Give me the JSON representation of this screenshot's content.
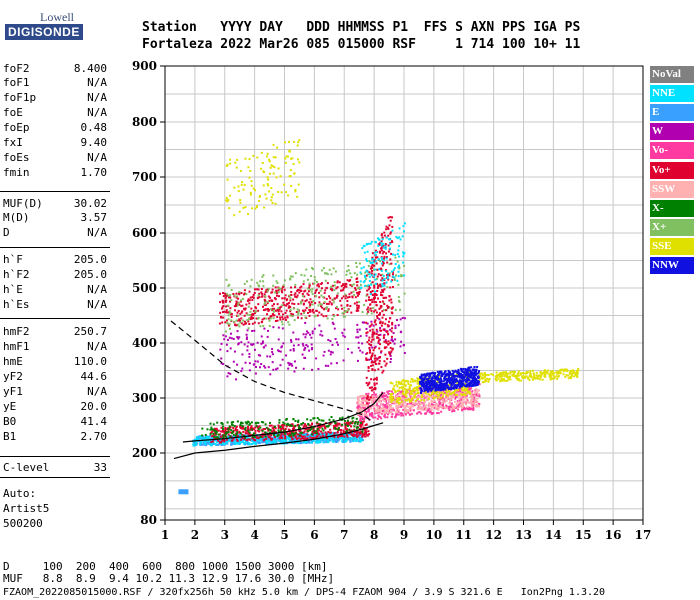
{
  "logo": {
    "top": "Lowell",
    "bottom": "DIGISONDE"
  },
  "header": {
    "line1": "Station   YYYY DAY   DDD HHMMSS P1  FFS S AXN PPS IGA PS",
    "line2": "Fortaleza 2022 Mar26 085 015000 RSF     1 714 100 10+ 11"
  },
  "params": [
    {
      "name": "foF2",
      "value": "8.400"
    },
    {
      "name": "foF1",
      "value": "N/A"
    },
    {
      "name": "foF1p",
      "value": "N/A"
    },
    {
      "name": "foE",
      "value": "N/A"
    },
    {
      "name": "foEp",
      "value": "0.48"
    },
    {
      "name": "fxI",
      "value": "9.40"
    },
    {
      "name": "foEs",
      "value": "N/A"
    },
    {
      "name": "fmin",
      "value": "1.70"
    },
    {
      "name": "MUF(D)",
      "value": "30.02"
    },
    {
      "name": "M(D)",
      "value": "3.57"
    },
    {
      "name": "D",
      "value": "N/A"
    },
    {
      "name": "h`F",
      "value": "205.0"
    },
    {
      "name": "h`F2",
      "value": "205.0"
    },
    {
      "name": "h`E",
      "value": "N/A"
    },
    {
      "name": "h`Es",
      "value": "N/A"
    },
    {
      "name": "hmF2",
      "value": "250.7"
    },
    {
      "name": "hmF1",
      "value": "N/A"
    },
    {
      "name": "hmE",
      "value": "110.0"
    },
    {
      "name": "yF2",
      "value": "44.6"
    },
    {
      "name": "yF1",
      "value": "N/A"
    },
    {
      "name": "yE",
      "value": "20.0"
    },
    {
      "name": "B0",
      "value": "41.4"
    },
    {
      "name": "B1",
      "value": "2.70"
    },
    {
      "name": "C-level",
      "value": "33"
    }
  ],
  "auto": {
    "line1": "Auto:",
    "line2": "Artist5",
    "line3": "500200"
  },
  "legend": [
    {
      "label": "NoVal",
      "color": "#808080"
    },
    {
      "label": "NNE",
      "color": "#00e0ff"
    },
    {
      "label": "E",
      "color": "#3aa0ff"
    },
    {
      "label": "W",
      "color": "#b000b0"
    },
    {
      "label": "Vo-",
      "color": "#ff3aa0"
    },
    {
      "label": "Vo+",
      "color": "#e00030"
    },
    {
      "label": "SSW",
      "color": "#ffb0b0"
    },
    {
      "label": "X-",
      "color": "#008000"
    },
    {
      "label": "X+",
      "color": "#80c060"
    },
    {
      "label": "SSE",
      "color": "#e0e000"
    },
    {
      "label": "NNW",
      "color": "#1010e0"
    }
  ],
  "footer": {
    "line1": "D     100  200  400  600  800 1000 1500 3000 [km]",
    "line2": "MUF   8.8  8.9  9.4 10.2 11.3 12.9 17.6 30.0 [MHz]",
    "line3": "FZAOM_2022085015000.RSF / 320fx256h 50 kHz 5.0 km / DPS-4 FZAOM 904 / 3.9 S 321.6 E   Ion2Png 1.3.20"
  },
  "chart_data": {
    "type": "scatter",
    "xlim": [
      1,
      17
    ],
    "ylim": [
      80,
      900
    ],
    "x_ticks": [
      "1",
      "2",
      "3",
      "4",
      "5",
      "6",
      "7",
      "8",
      "9",
      "10",
      "11",
      "12",
      "13",
      "14",
      "15",
      "16",
      "17"
    ],
    "y_ticks": [
      "80",
      "200",
      "300",
      "400",
      "500",
      "600",
      "700",
      "800",
      "900"
    ],
    "grid": true,
    "legend_position": "right",
    "profile_curve": {
      "x": [
        1.3,
        2,
        3,
        4,
        5,
        6,
        7,
        7.5,
        8,
        8.3
      ],
      "y": [
        190,
        200,
        205,
        212,
        218,
        225,
        235,
        242,
        250,
        255
      ]
    },
    "trace_curve": {
      "x": [
        1.6,
        2,
        3,
        4,
        5,
        6,
        7,
        7.6,
        8,
        8.3
      ],
      "y": [
        220,
        222,
        226,
        232,
        238,
        248,
        262,
        275,
        290,
        310
      ]
    },
    "dashed_curve": {
      "x": [
        1.2,
        2,
        3,
        4,
        5,
        6,
        7,
        7.6,
        8
      ],
      "y": [
        440,
        405,
        360,
        330,
        310,
        295,
        280,
        270,
        255
      ]
    },
    "clusters": [
      {
        "x": [
          1.9,
          7.6
        ],
        "y": [
          215,
          240
        ],
        "n": 700,
        "color": "#3aa0ff"
      },
      {
        "x": [
          1.9,
          7.6
        ],
        "y": [
          215,
          240
        ],
        "n": 350,
        "color": "#00e0ff"
      },
      {
        "x": [
          2.5,
          7.8
        ],
        "y": [
          220,
          260
        ],
        "n": 500,
        "color": "#e00030"
      },
      {
        "x": [
          2.2,
          7.6
        ],
        "y": [
          225,
          270
        ],
        "n": 220,
        "color": "#008000"
      },
      {
        "x": [
          7.4,
          11.5
        ],
        "y": [
          260,
          330
        ],
        "n": 600,
        "color": "#ff3aa0"
      },
      {
        "x": [
          7.4,
          11.5
        ],
        "y": [
          270,
          320
        ],
        "n": 400,
        "color": "#ffb0b0"
      },
      {
        "x": [
          8.5,
          11.2
        ],
        "y": [
          290,
          350
        ],
        "n": 300,
        "color": "#e0e000"
      },
      {
        "x": [
          9.5,
          11.5
        ],
        "y": [
          310,
          360
        ],
        "n": 600,
        "color": "#1010e0"
      },
      {
        "x": [
          11.5,
          14.8
        ],
        "y": [
          330,
          355
        ],
        "n": 250,
        "color": "#e0e000"
      },
      {
        "x": [
          2.8,
          7.5
        ],
        "y": [
          430,
          520
        ],
        "n": 450,
        "color": "#e00030"
      },
      {
        "x": [
          3,
          9
        ],
        "y": [
          420,
          560
        ],
        "n": 250,
        "color": "#80c060"
      },
      {
        "x": [
          3,
          5.5
        ],
        "y": [
          620,
          780
        ],
        "n": 120,
        "color": "#e0e000"
      },
      {
        "x": [
          2.8,
          9
        ],
        "y": [
          330,
          460
        ],
        "n": 250,
        "color": "#b000b0"
      },
      {
        "x": [
          7.7,
          8.6
        ],
        "y": [
          280,
          650
        ],
        "n": 350,
        "color": "#e00030"
      },
      {
        "x": [
          7.5,
          9
        ],
        "y": [
          480,
          620
        ],
        "n": 120,
        "color": "#00e0ff"
      }
    ]
  }
}
